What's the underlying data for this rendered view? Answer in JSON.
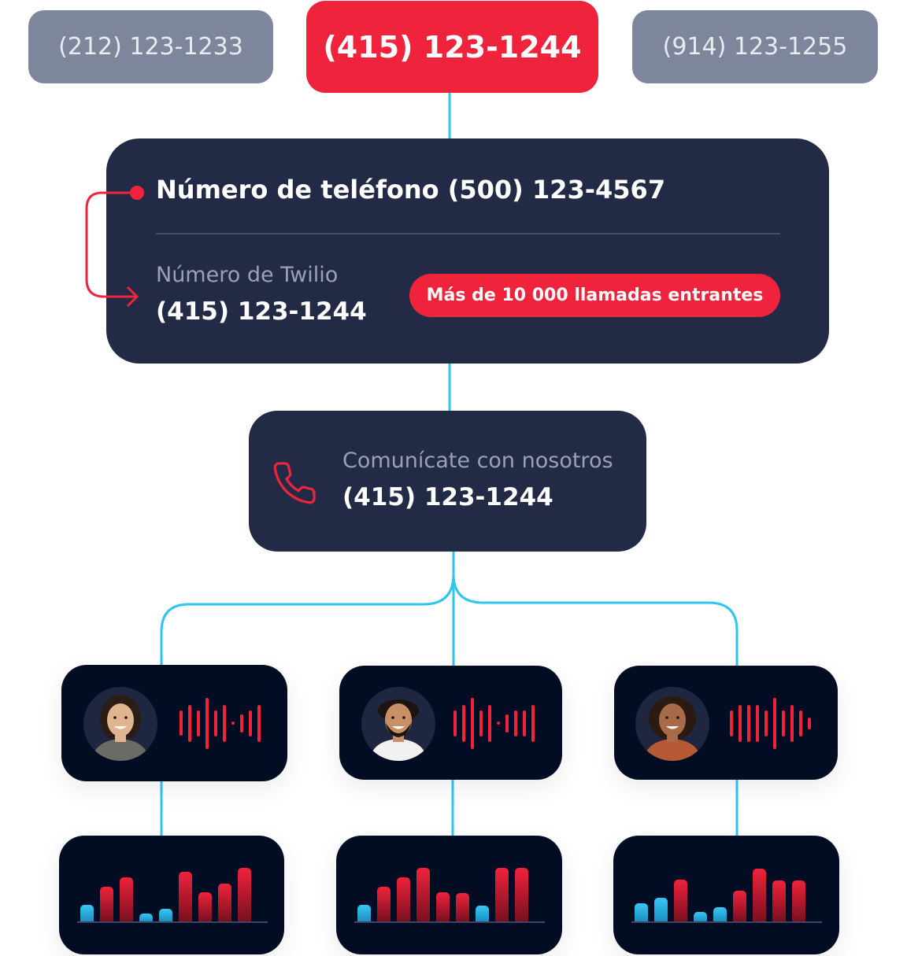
{
  "top_numbers": [
    {
      "label": "(212) 123-1233",
      "state": "inactive"
    },
    {
      "label": "(415) 123-1244",
      "state": "active"
    },
    {
      "label": "(914) 123-1255",
      "state": "inactive"
    }
  ],
  "main_card": {
    "title": "Número de teléfono (500) 123-4567",
    "twilio_label": "Número de Twilio",
    "twilio_number": "(415) 123-1244",
    "badge": "Más de 10 000 llamadas entrantes"
  },
  "contact_card": {
    "icon": "phone-icon",
    "label": "Comunícate con nosotros",
    "number": "(415) 123-1244"
  },
  "agents": [
    {
      "avatar": "woman-avatar",
      "skin": "#e0b48f",
      "hair": "#2b1d16",
      "shirt": "#6b6b66",
      "waveform": [
        32,
        47,
        33,
        65,
        33,
        47,
        4,
        23,
        33,
        47
      ]
    },
    {
      "avatar": "man-avatar",
      "skin": "#c99068",
      "hair": "#1b1512",
      "shirt": "#f1f1f1",
      "waveform": [
        33,
        47,
        65,
        33,
        47,
        4,
        23,
        33,
        33,
        47
      ]
    },
    {
      "avatar": "woman-curly-avatar",
      "skin": "#a86b48",
      "hair": "#2a1a12",
      "shirt": "#b55a35",
      "waveform": [
        33,
        47,
        47,
        47,
        33,
        65,
        33,
        47,
        33,
        15
      ]
    }
  ],
  "charts": [
    {
      "bars": [
        {
          "v": 21,
          "c": "blue"
        },
        {
          "v": 44,
          "c": "red"
        },
        {
          "v": 56,
          "c": "red"
        },
        {
          "v": 10,
          "c": "blue"
        },
        {
          "v": 16,
          "c": "blue"
        },
        {
          "v": 63,
          "c": "red"
        },
        {
          "v": 37,
          "c": "red"
        },
        {
          "v": 48,
          "c": "red"
        },
        {
          "v": 68,
          "c": "red"
        }
      ]
    },
    {
      "bars": [
        {
          "v": 21,
          "c": "blue"
        },
        {
          "v": 44,
          "c": "red"
        },
        {
          "v": 56,
          "c": "red"
        },
        {
          "v": 68,
          "c": "red"
        },
        {
          "v": 37,
          "c": "red"
        },
        {
          "v": 36,
          "c": "red"
        },
        {
          "v": 20,
          "c": "blue"
        },
        {
          "v": 68,
          "c": "red"
        },
        {
          "v": 68,
          "c": "red"
        }
      ]
    },
    {
      "bars": [
        {
          "v": 23,
          "c": "blue"
        },
        {
          "v": 30,
          "c": "blue"
        },
        {
          "v": 53,
          "c": "red"
        },
        {
          "v": 12,
          "c": "blue"
        },
        {
          "v": 18,
          "c": "blue"
        },
        {
          "v": 39,
          "c": "red"
        },
        {
          "v": 67,
          "c": "red"
        },
        {
          "v": 52,
          "c": "red"
        },
        {
          "v": 52,
          "c": "red"
        }
      ]
    }
  ],
  "colors": {
    "accent_red": "#ef233c",
    "connector_cyan": "#2ec5f0",
    "card_navy": "#232a45",
    "card_dark": "#020d24",
    "pill_gray": "#7e869b"
  }
}
